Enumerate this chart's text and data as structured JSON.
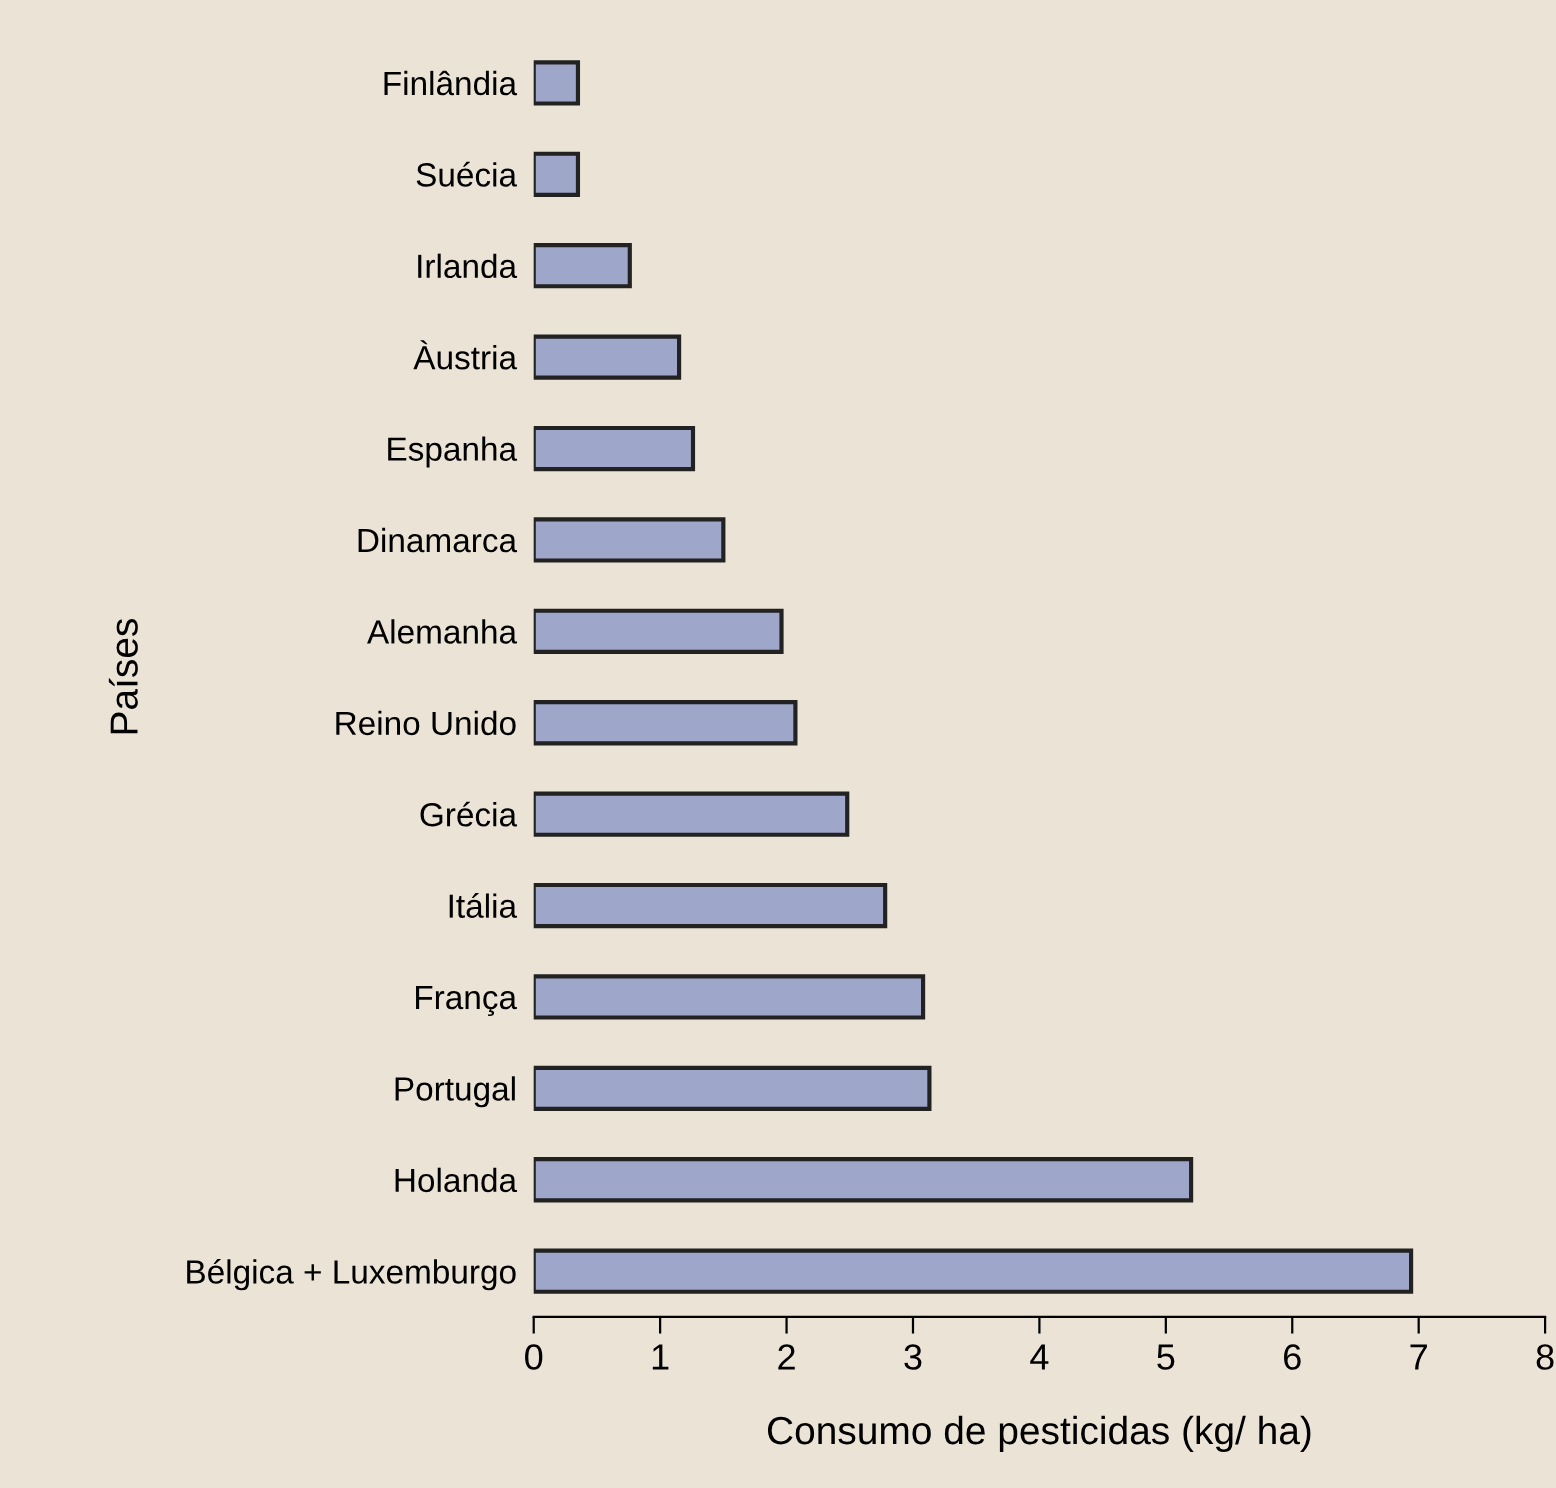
{
  "chart_data": {
    "type": "bar",
    "orientation": "horizontal",
    "xlabel": "Consumo de pesticidas (kg/ ha)",
    "ylabel": "Países",
    "categories": [
      "Finlândia",
      "Suécia",
      "Irlanda",
      "Àustria",
      "Espanha",
      "Dinamarca",
      "Alemanha",
      "Reino Unido",
      "Grécia",
      "Itália",
      "França",
      "Portugal",
      "Holanda",
      "Bélgica + Luxemburgo"
    ],
    "values": [
      0.35,
      0.35,
      0.76,
      1.15,
      1.26,
      1.5,
      1.96,
      2.07,
      2.48,
      2.78,
      3.08,
      3.13,
      5.2,
      6.94
    ],
    "color": "#9ea6c9",
    "xlim": [
      0,
      8
    ],
    "xticks": [
      0,
      1,
      2,
      3,
      4,
      5,
      6,
      7,
      8
    ],
    "grid": false,
    "legend": false
  }
}
